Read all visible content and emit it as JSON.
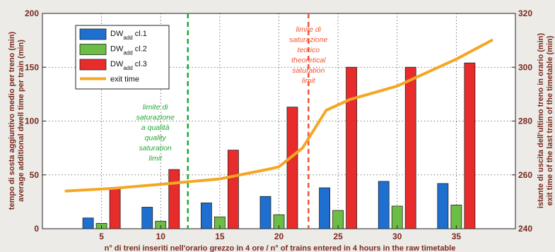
{
  "chart_data": {
    "type": "bar",
    "categories": [
      "5",
      "10",
      "15",
      "20",
      "25",
      "30",
      "35"
    ],
    "series": [
      {
        "name": "DWadd cl.1",
        "color": "#1e6fd0",
        "values": [
          10,
          20,
          24,
          30,
          38,
          44,
          42
        ]
      },
      {
        "name": "DWadd cl.2",
        "color": "#6cbd45",
        "values": [
          5,
          7,
          11,
          13,
          17,
          21,
          22
        ]
      },
      {
        "name": "DWadd cl.3",
        "color": "#e82c2c",
        "values": [
          37,
          55,
          73,
          113,
          150,
          150,
          154
        ]
      }
    ],
    "line_series": {
      "name": "exit time",
      "color": "#f5a623",
      "axis": "right",
      "points": [
        [
          2,
          254
        ],
        [
          6,
          255
        ],
        [
          10,
          256.5
        ],
        [
          15,
          258.5
        ],
        [
          19,
          262
        ],
        [
          20,
          263
        ],
        [
          22,
          270
        ],
        [
          24,
          284
        ],
        [
          26,
          288
        ],
        [
          30,
          293
        ],
        [
          35,
          303
        ],
        [
          38,
          310
        ]
      ]
    },
    "legend_labels": [
      {
        "main": "DW",
        "sub": "add",
        "tail": " cl.1"
      },
      {
        "main": "DW",
        "sub": "add",
        "tail": " cl.2"
      },
      {
        "main": "DW",
        "sub": "add",
        "tail": " cl.3"
      },
      {
        "main": "exit time",
        "sub": "",
        "tail": ""
      }
    ],
    "xlim": [
      0,
      40
    ],
    "ylim": [
      0,
      200
    ],
    "yticks": [
      0,
      50,
      100,
      150,
      200
    ],
    "y2lim": [
      240,
      320
    ],
    "y2ticks": [
      240,
      260,
      280,
      300,
      320
    ],
    "xticks": [
      5,
      10,
      15,
      20,
      25,
      30,
      35
    ],
    "xlabel": "n° di treni inseriti nell'orario grezzo in 4 ore / n° of trains entered in 4 hours in the raw timetable",
    "ylabel": [
      "tempo di sosta aggiuntivo medio per treno (min)",
      "average additional dwell time per train (min)"
    ],
    "y2label": [
      "istante di uscita dell'ultimo treno in orario (min)",
      "exit time of the last train of the timetable (min)"
    ],
    "grid": true,
    "legend_position": "top-left",
    "annotations": [
      {
        "x": 12.3,
        "color": "#22aa33",
        "lines": [
          "limite di",
          "saturazione",
          "a qualità",
          "quality",
          "saturation",
          "limit"
        ]
      },
      {
        "x": 22.5,
        "color": "#ee5533",
        "lines": [
          "limite di",
          "saturazione",
          "teorico",
          "theoretical",
          "saturation",
          "limit"
        ]
      }
    ]
  }
}
